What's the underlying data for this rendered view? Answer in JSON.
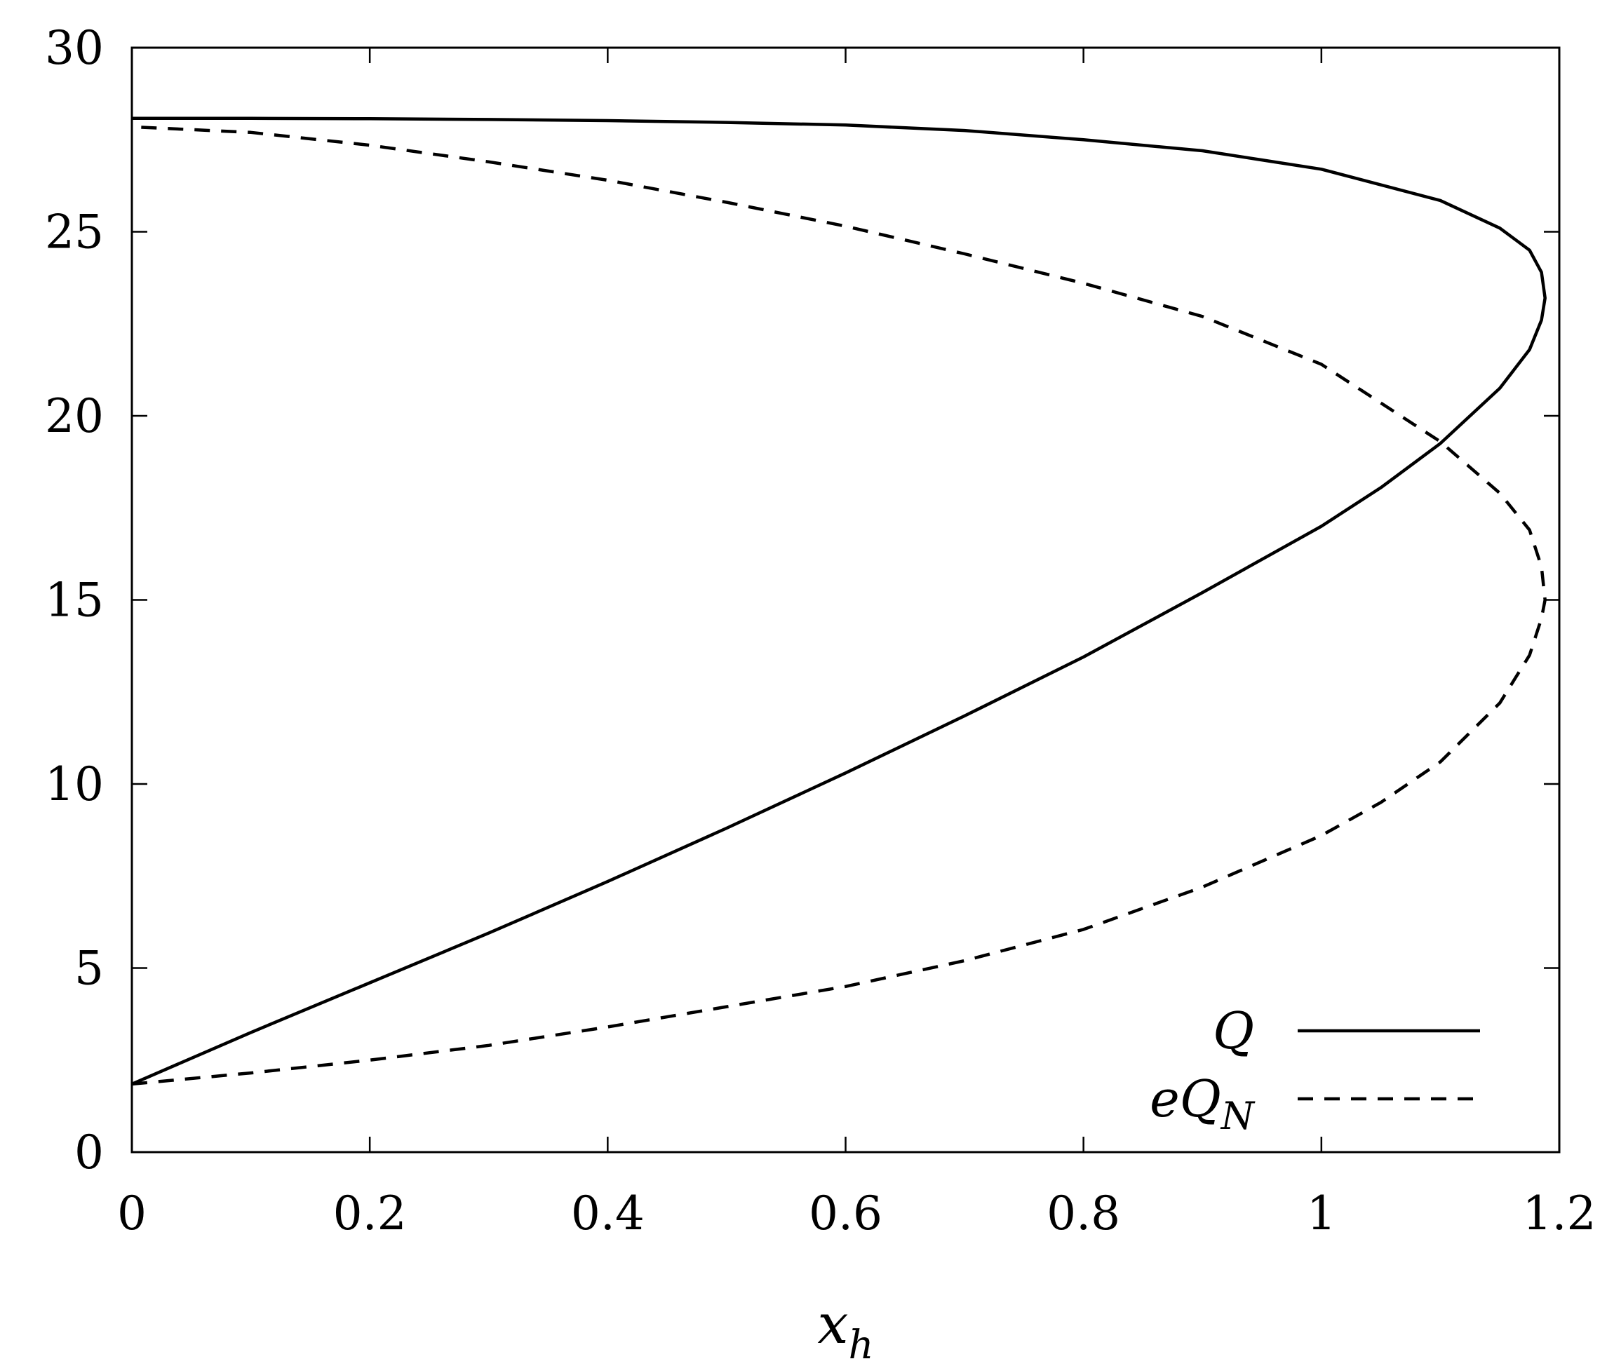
{
  "chart_data": {
    "type": "line",
    "title": "",
    "xlabel": "x",
    "xlabel_sub": "h",
    "ylabel": "",
    "xlim": [
      0,
      1.2
    ],
    "ylim": [
      0,
      30
    ],
    "xticks": [
      "0",
      "0.2",
      "0.4",
      "0.6",
      "0.8",
      "1",
      "1.2"
    ],
    "yticks": [
      "0",
      "5",
      "10",
      "15",
      "20",
      "25",
      "30"
    ],
    "xtick_values": [
      0,
      0.2,
      0.4,
      0.6,
      0.8,
      1.0,
      1.2
    ],
    "ytick_values": [
      0,
      5,
      10,
      15,
      20,
      25,
      30
    ],
    "grid": false,
    "legend_position": "bottom-right",
    "series": [
      {
        "name": "Q",
        "legend_main": "Q",
        "legend_sub": "",
        "style": "solid",
        "color": "#000000",
        "points": [
          [
            0.0,
            1.85
          ],
          [
            0.1,
            3.25
          ],
          [
            0.2,
            4.6
          ],
          [
            0.3,
            5.95
          ],
          [
            0.4,
            7.35
          ],
          [
            0.5,
            8.8
          ],
          [
            0.6,
            10.3
          ],
          [
            0.7,
            11.85
          ],
          [
            0.8,
            13.45
          ],
          [
            0.9,
            15.2
          ],
          [
            1.0,
            17.0
          ],
          [
            1.05,
            18.05
          ],
          [
            1.1,
            19.25
          ],
          [
            1.15,
            20.75
          ],
          [
            1.175,
            21.8
          ],
          [
            1.185,
            22.6
          ],
          [
            1.188,
            23.2
          ],
          [
            1.185,
            23.9
          ],
          [
            1.175,
            24.5
          ],
          [
            1.15,
            25.1
          ],
          [
            1.1,
            25.85
          ],
          [
            1.0,
            26.7
          ],
          [
            0.95,
            26.95
          ],
          [
            0.9,
            27.2
          ],
          [
            0.8,
            27.5
          ],
          [
            0.7,
            27.75
          ],
          [
            0.6,
            27.9
          ],
          [
            0.5,
            27.97
          ],
          [
            0.4,
            28.02
          ],
          [
            0.3,
            28.05
          ],
          [
            0.2,
            28.07
          ],
          [
            0.1,
            28.08
          ],
          [
            0.0,
            28.08
          ]
        ]
      },
      {
        "name": "eQ_N",
        "legend_main": "eQ",
        "legend_sub": "N",
        "style": "dashed",
        "color": "#000000",
        "points": [
          [
            0.0,
            1.85
          ],
          [
            0.1,
            2.15
          ],
          [
            0.2,
            2.5
          ],
          [
            0.3,
            2.9
          ],
          [
            0.4,
            3.4
          ],
          [
            0.5,
            3.95
          ],
          [
            0.6,
            4.5
          ],
          [
            0.7,
            5.2
          ],
          [
            0.8,
            6.05
          ],
          [
            0.9,
            7.2
          ],
          [
            1.0,
            8.6
          ],
          [
            1.05,
            9.5
          ],
          [
            1.1,
            10.6
          ],
          [
            1.15,
            12.2
          ],
          [
            1.175,
            13.5
          ],
          [
            1.185,
            14.5
          ],
          [
            1.188,
            15.0
          ],
          [
            1.185,
            15.9
          ],
          [
            1.175,
            16.9
          ],
          [
            1.15,
            17.9
          ],
          [
            1.1,
            19.3
          ],
          [
            1.0,
            21.4
          ],
          [
            0.9,
            22.7
          ],
          [
            0.8,
            23.6
          ],
          [
            0.7,
            24.4
          ],
          [
            0.6,
            25.15
          ],
          [
            0.5,
            25.8
          ],
          [
            0.4,
            26.4
          ],
          [
            0.3,
            26.9
          ],
          [
            0.2,
            27.35
          ],
          [
            0.1,
            27.7
          ],
          [
            0.0,
            27.85
          ]
        ]
      }
    ]
  }
}
